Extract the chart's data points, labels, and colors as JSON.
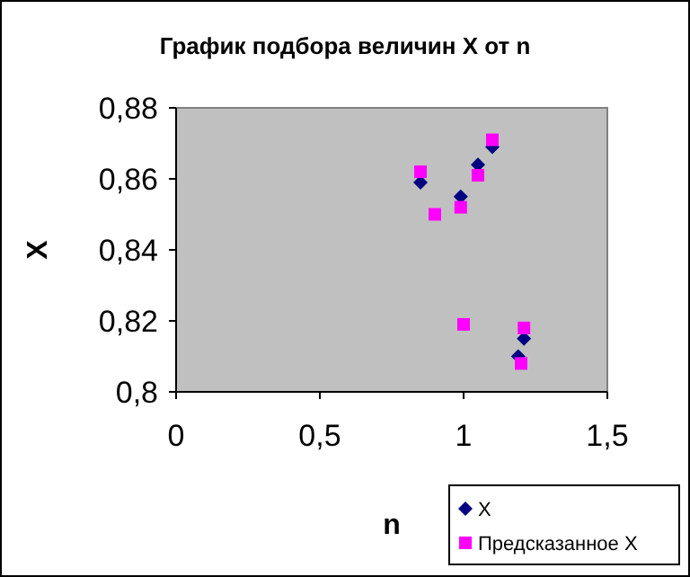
{
  "chart_data": {
    "type": "scatter",
    "title": "График подбора величин X от n",
    "xlabel": "n",
    "ylabel": "X",
    "xlim": [
      0,
      1.5
    ],
    "xticks": [
      0,
      {
        "value": 0.5,
        "label": "0,5"
      },
      1,
      {
        "value": 1.5,
        "label": "1,5"
      }
    ],
    "ylim": [
      0.8,
      0.88
    ],
    "yticks": [
      {
        "value": 0.8,
        "label": "0,8"
      },
      {
        "value": 0.82,
        "label": "0,82"
      },
      {
        "value": 0.84,
        "label": "0,84"
      },
      {
        "value": 0.86,
        "label": "0,86"
      },
      {
        "value": 0.88,
        "label": "0,88"
      }
    ],
    "grid": false,
    "legend": "bottom right",
    "series": [
      {
        "name": "X",
        "color": "#000080",
        "marker": "diamond",
        "x": [
          0.85,
          1.05,
          1.1,
          0.99,
          1.21,
          1.19
        ],
        "values": [
          0.859,
          0.864,
          0.869,
          0.855,
          0.815,
          0.81
        ]
      },
      {
        "name": "Предсказанное X",
        "color": "#ff00ff",
        "marker": "square",
        "x": [
          0.85,
          1.1,
          1.05,
          0.99,
          0.9,
          1.0,
          1.21,
          1.2
        ],
        "values": [
          0.862,
          0.871,
          0.861,
          0.852,
          0.85,
          0.819,
          0.818,
          0.808
        ]
      }
    ]
  }
}
